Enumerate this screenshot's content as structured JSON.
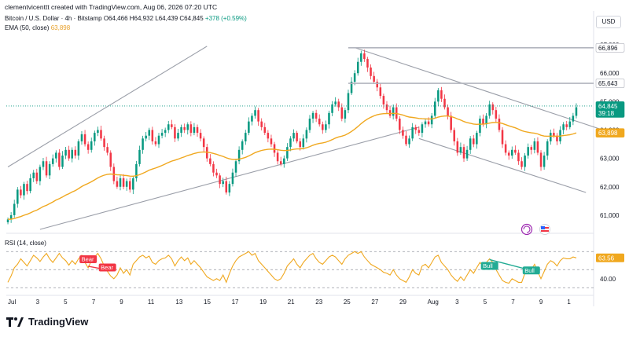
{
  "header": {
    "credit": "clementvicenttt created with TradingView.com, Aug 06, 2026 07:20 UTC",
    "symbol": "Bitcoin / U.S. Dollar · 4h · Bitstamp",
    "open": "O64,466",
    "high": "H64,932",
    "low": "L64,439",
    "close": "C64,845",
    "change": "+378 (+0.59%)",
    "ema_label": "EMA (50, close)",
    "ema_value": "63,898"
  },
  "currency": "USD",
  "brand": "TradingView",
  "colors": {
    "up": "#089981",
    "down": "#f23645",
    "ema": "#f0a81f",
    "rsi": "#f0a81f",
    "channel": "#9a9ea8",
    "bear": "#f23645",
    "bull": "#22ab94"
  },
  "chart_data": {
    "type": "candlestick",
    "timeframe": "4h",
    "x_ticks": [
      "Jul",
      "3",
      "5",
      "7",
      "9",
      "11",
      "13",
      "15",
      "17",
      "19",
      "21",
      "23",
      "25",
      "27",
      "29",
      "Aug",
      "3",
      "5",
      "7",
      "9",
      "1"
    ],
    "y_ticks": [
      "67,000",
      "66,000",
      "65,000",
      "64,000",
      "63,000",
      "62,000",
      "61,000"
    ],
    "ylim": [
      60500,
      67250
    ],
    "price_tags": [
      {
        "value": 66896,
        "label": "66,896"
      },
      {
        "value": 65643,
        "label": "65,643"
      },
      {
        "value": 64845,
        "label": "64,845",
        "sub": "39:18"
      },
      {
        "value": 63898,
        "label": "63,898"
      }
    ],
    "close_series": [
      60850,
      61000,
      61400,
      61900,
      61700,
      62100,
      61850,
      62300,
      62500,
      62200,
      62700,
      62900,
      62400,
      62800,
      63000,
      63200,
      62700,
      63100,
      63300,
      63000,
      63300,
      63100,
      63600,
      63850,
      63500,
      63300,
      63600,
      63900,
      64000,
      63700,
      63400,
      63200,
      62700,
      62200,
      62000,
      62300,
      62000,
      62200,
      61900,
      62300,
      62800,
      63300,
      63700,
      63800,
      64000,
      63600,
      63500,
      63800,
      63900,
      64000,
      64200,
      64100,
      63700,
      63900,
      64100,
      64000,
      64200,
      63900,
      64100,
      63900,
      63700,
      63400,
      63000,
      62800,
      62500,
      62400,
      62100,
      62200,
      61800,
      62100,
      62500,
      62900,
      63300,
      63600,
      63900,
      64300,
      64500,
      64700,
      64300,
      64100,
      63900,
      63700,
      63500,
      63200,
      62900,
      62800,
      63000,
      63400,
      63700,
      63900,
      63600,
      63400,
      63700,
      64000,
      64400,
      64600,
      64400,
      64200,
      64000,
      64200,
      64600,
      64900,
      65000,
      64800,
      64400,
      64700,
      65300,
      65700,
      66000,
      66400,
      66700,
      66500,
      66200,
      65900,
      65700,
      65500,
      65200,
      64900,
      64700,
      64500,
      64800,
      64400,
      64000,
      63800,
      63500,
      63700,
      64100,
      64000,
      63900,
      64200,
      64300,
      64200,
      64500,
      65000,
      65400,
      65100,
      64800,
      64500,
      64000,
      63600,
      63200,
      63400,
      63000,
      63300,
      63700,
      63500,
      63900,
      64400,
      64200,
      64500,
      64900,
      64700,
      64400,
      64000,
      63500,
      63200,
      63100,
      63300,
      63200,
      62900,
      62700,
      63100,
      63400,
      63300,
      63600,
      63200,
      62700,
      63100,
      63600,
      63900,
      63800,
      63600,
      64000,
      64200,
      64100,
      64300,
      64500,
      64800
    ],
    "ema": {
      "name": "EMA (50, close)",
      "last": 63898
    },
    "channels": [
      {
        "from": [
          0,
          62700
        ],
        "to": [
          62,
          66950
        ],
        "label": "ascending upper"
      },
      {
        "from": [
          10,
          60500
        ],
        "to": [
          128,
          64100
        ],
        "label": "ascending lower"
      },
      {
        "from": [
          108,
          66900
        ],
        "to": [
          188,
          63900
        ],
        "label": "descending upper"
      },
      {
        "from": [
          128,
          63700
        ],
        "to": [
          180,
          61800
        ],
        "label": "descending lower"
      }
    ],
    "rsi": {
      "label": "RSI (14, close)",
      "value_label": "63.56",
      "axis_label": "40.00",
      "ylim": [
        25,
        85
      ],
      "levels": [
        70,
        50,
        30
      ],
      "series": [
        36,
        43,
        52,
        56,
        62,
        58,
        54,
        60,
        66,
        63,
        59,
        64,
        68,
        62,
        58,
        63,
        68,
        63,
        60,
        55,
        60,
        56,
        62,
        66,
        58,
        52,
        60,
        64,
        68,
        62,
        54,
        48,
        43,
        40,
        44,
        52,
        46,
        50,
        44,
        56,
        60,
        64,
        66,
        63,
        65,
        58,
        56,
        60,
        62,
        63,
        66,
        62,
        54,
        60,
        64,
        60,
        63,
        56,
        60,
        56,
        52,
        47,
        42,
        40,
        38,
        40,
        38,
        44,
        36,
        46,
        54,
        60,
        64,
        66,
        68,
        70,
        66,
        68,
        60,
        56,
        52,
        48,
        44,
        40,
        38,
        40,
        46,
        54,
        58,
        62,
        56,
        52,
        58,
        62,
        66,
        68,
        62,
        58,
        56,
        60,
        64,
        66,
        64,
        60,
        56,
        62,
        66,
        68,
        70,
        68,
        70,
        64,
        60,
        56,
        54,
        52,
        50,
        47,
        46,
        44,
        50,
        44,
        40,
        38,
        36,
        42,
        50,
        46,
        44,
        54,
        56,
        52,
        58,
        64,
        66,
        58,
        54,
        50,
        44,
        40,
        37,
        42,
        38,
        44,
        50,
        46,
        52,
        58,
        54,
        58,
        62,
        58,
        50,
        44,
        38,
        36,
        35,
        40,
        38,
        36,
        36,
        46,
        52,
        50,
        56,
        48,
        40,
        48,
        56,
        60,
        58,
        54,
        60,
        63,
        62,
        62,
        64,
        63
      ],
      "annotations": [
        {
          "type": "Bear",
          "label": "Bear",
          "index": 25
        },
        {
          "type": "Bear",
          "label": "Bear",
          "index": 31
        },
        {
          "type": "Bull",
          "label": "Bull",
          "index": 150
        },
        {
          "type": "Bull",
          "label": "Bull",
          "index": 163
        }
      ]
    }
  }
}
